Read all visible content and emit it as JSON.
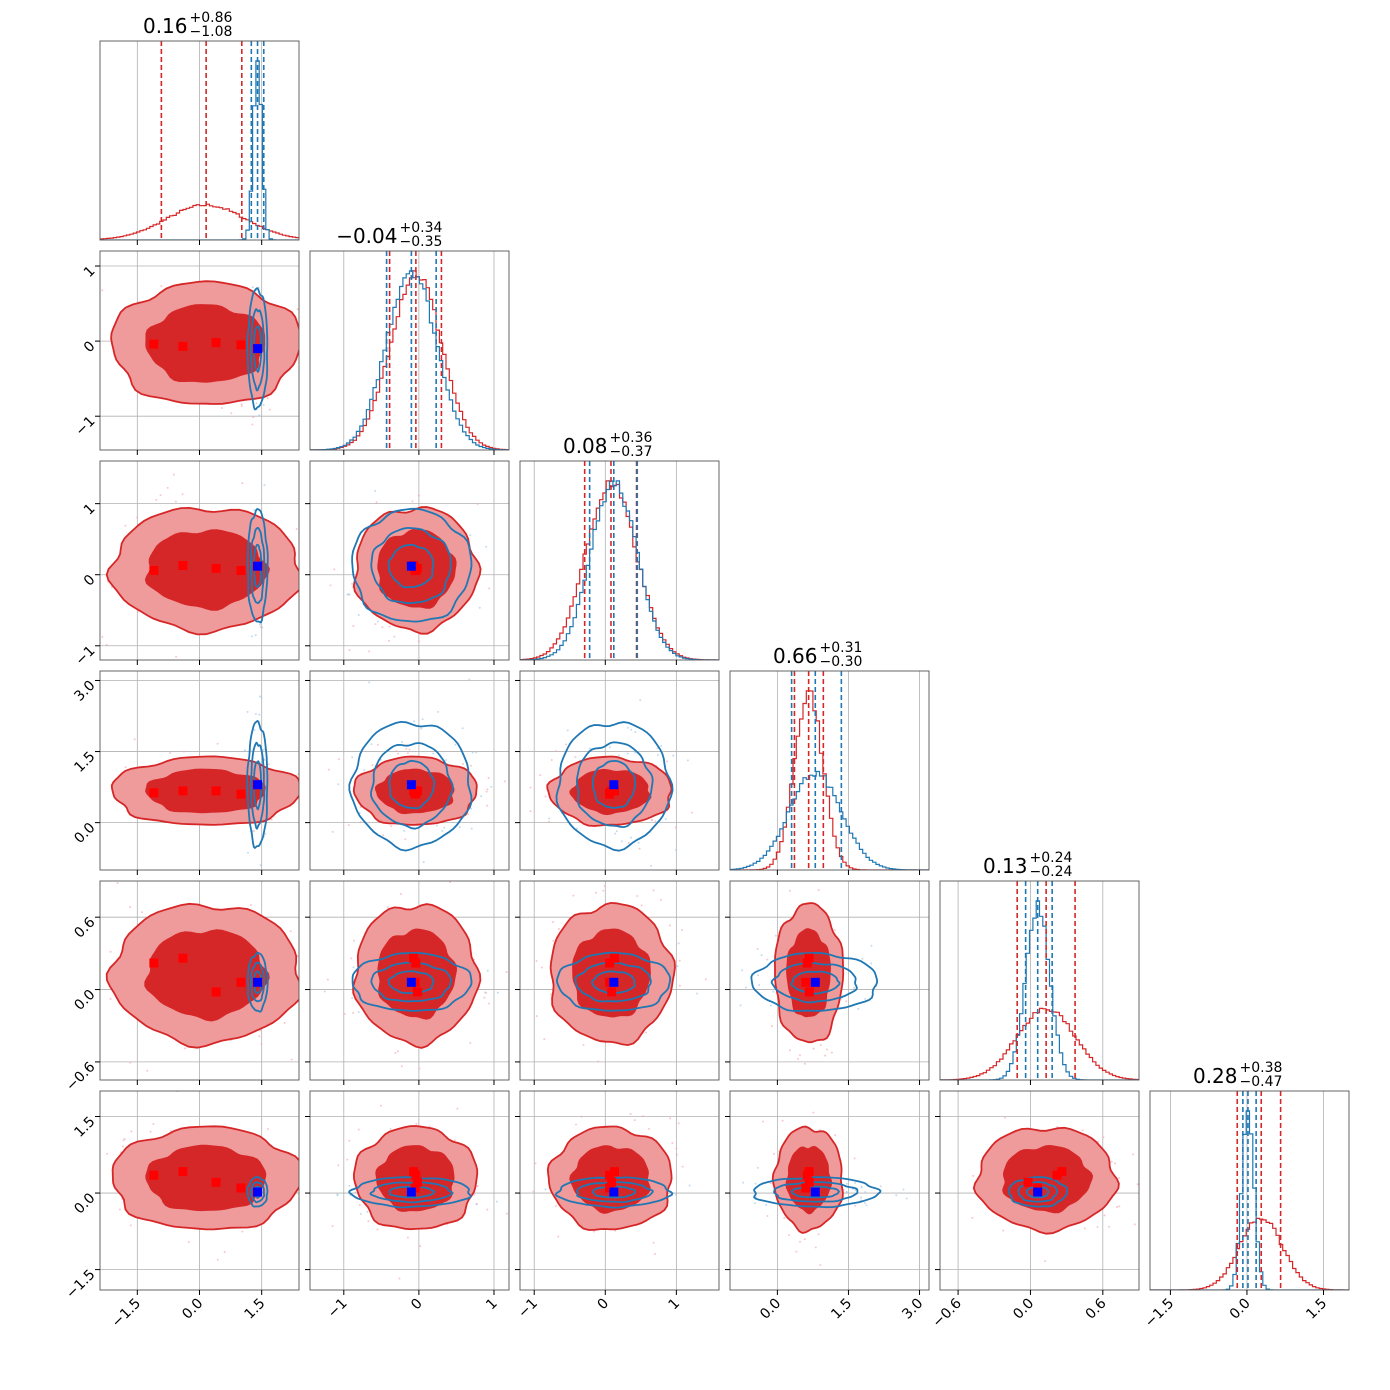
{
  "chart_data": {
    "type": "corner",
    "dimensions": 6,
    "series": [
      {
        "name": "",
        "color": "#d62728"
      },
      {
        "name": "",
        "color": "#1f77b4"
      }
    ],
    "markers": {
      "red_color": "#ff0000",
      "blue_color": "#0000ff"
    },
    "titles": [
      {
        "value": "0.16",
        "plus": "+0.86",
        "minus": "−1.08"
      },
      {
        "value": "−0.04",
        "plus": "+0.34",
        "minus": "−0.35"
      },
      {
        "value": "0.08",
        "plus": "+0.36",
        "minus": "−0.37"
      },
      {
        "value": "0.66",
        "plus": "+0.31",
        "minus": "−0.30"
      },
      {
        "value": "0.13",
        "plus": "+0.24",
        "minus": "−0.24"
      },
      {
        "value": "0.28",
        "plus": "+0.38",
        "minus": "−0.47"
      }
    ],
    "axes": [
      {
        "range": [
          -2.4,
          2.4
        ],
        "ticks": [
          -1.5,
          0.0,
          1.5
        ],
        "tick_labels": [
          "−1.5",
          "0.0",
          "1.5"
        ]
      },
      {
        "range": [
          -1.45,
          1.2
        ],
        "ticks": [
          -1,
          0,
          1
        ],
        "tick_labels": [
          "−1",
          "0",
          "1"
        ]
      },
      {
        "range": [
          -1.2,
          1.6
        ],
        "ticks": [
          -1,
          0,
          1
        ],
        "tick_labels": [
          "−1",
          "0",
          "1"
        ]
      },
      {
        "range": [
          -1.0,
          3.2
        ],
        "ticks": [
          0.0,
          1.5,
          3.0
        ],
        "tick_labels": [
          "0.0",
          "1.5",
          "3.0"
        ]
      },
      {
        "range": [
          -0.75,
          0.9
        ],
        "ticks": [
          -0.6,
          0.0,
          0.6
        ],
        "tick_labels": [
          "−0.6",
          "0.0",
          "0.6"
        ]
      },
      {
        "range": [
          -1.9,
          2.0
        ],
        "ticks": [
          -1.5,
          0.0,
          1.5
        ],
        "tick_labels": [
          "−1.5",
          "0.0",
          "1.5"
        ]
      }
    ],
    "red_stats": [
      {
        "mean": 0.16,
        "sd": 0.95,
        "q16": -0.92,
        "q84": 1.02
      },
      {
        "mean": -0.04,
        "sd": 0.34,
        "q16": -0.39,
        "q84": 0.3
      },
      {
        "mean": 0.08,
        "sd": 0.36,
        "q16": -0.29,
        "q84": 0.44
      },
      {
        "mean": 0.66,
        "sd": 0.3,
        "q16": 0.36,
        "q84": 0.97
      },
      {
        "mean": 0.13,
        "sd": 0.24,
        "q16": -0.11,
        "q84": 0.37
      },
      {
        "mean": 0.28,
        "sd": 0.42,
        "q16": -0.19,
        "q84": 0.66
      }
    ],
    "blue_stats": [
      {
        "mean": 1.4,
        "sd": 0.1,
        "q16": 1.25,
        "q84": 1.55
      },
      {
        "mean": -0.1,
        "sd": 0.33,
        "q16": -0.43,
        "q84": 0.23
      },
      {
        "mean": 0.12,
        "sd": 0.33,
        "q16": -0.22,
        "q84": 0.45
      },
      {
        "mean": 0.8,
        "sd": 0.55,
        "q16": 0.3,
        "q84": 1.35
      },
      {
        "mean": 0.06,
        "sd": 0.1,
        "q16": -0.04,
        "q84": 0.18
      },
      {
        "mean": 0.02,
        "sd": 0.12,
        "q16": -0.08,
        "q84": 0.18
      }
    ],
    "red_markers": [
      [
        -1.1,
        -0.04,
        0.06,
        0.63,
        0.22,
        0.35
      ],
      [
        -0.4,
        -0.07,
        0.13,
        0.67,
        0.26,
        0.42
      ],
      [
        0.4,
        -0.02,
        0.09,
        0.67,
        -0.02,
        0.21
      ],
      [
        1.0,
        -0.05,
        0.06,
        0.6,
        0.06,
        0.1
      ]
    ],
    "blue_marker": [
      1.4,
      -0.1,
      0.12,
      0.8,
      0.06,
      0.02
    ]
  }
}
